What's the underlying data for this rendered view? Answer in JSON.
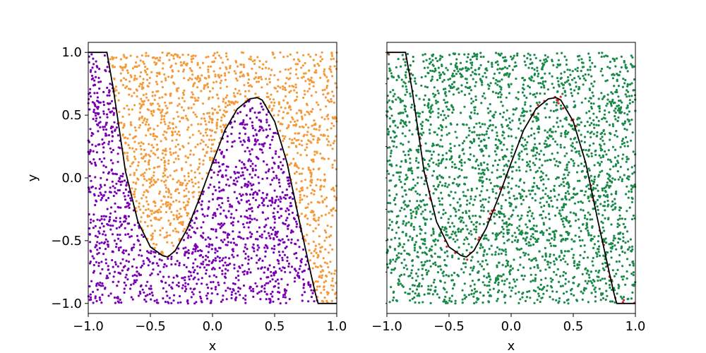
{
  "chart_data": [
    {
      "type": "scatter",
      "title": "",
      "xlabel": "x",
      "ylabel": "y",
      "xlim": [
        -1.0,
        1.0
      ],
      "ylim": [
        -1.08,
        1.08
      ],
      "xticks": [
        "−1.0",
        "−0.5",
        "0.0",
        "0.5",
        "1.0"
      ],
      "xtick_values": [
        -1.0,
        -0.5,
        0.0,
        0.5,
        1.0
      ],
      "yticks": [
        "−1.0",
        "−0.5",
        "0.0",
        "0.5",
        "1.0"
      ],
      "ytick_values": [
        -1.0,
        -0.5,
        0.0,
        0.5,
        1.0
      ],
      "grid": false,
      "points_per_panel": 3000,
      "series": [
        {
          "class": "below curve",
          "color": "#7b00b4"
        },
        {
          "class": "above curve",
          "color": "#f59a3a"
        }
      ],
      "boundary_curve": {
        "color": "#000000",
        "x": [
          -1.0,
          -0.9,
          -0.85,
          -0.8,
          -0.7,
          -0.6,
          -0.5,
          -0.4,
          -0.36,
          -0.3,
          -0.2,
          -0.1,
          0.0,
          0.1,
          0.2,
          0.3,
          0.36,
          0.4,
          0.5,
          0.6,
          0.7,
          0.76,
          0.8,
          0.83,
          0.85,
          0.9,
          1.0
        ],
        "y": [
          1.0,
          1.0,
          1.0,
          0.72,
          0.05,
          -0.35,
          -0.55,
          -0.62,
          -0.63,
          -0.58,
          -0.4,
          -0.15,
          0.12,
          0.38,
          0.55,
          0.63,
          0.64,
          0.62,
          0.45,
          0.12,
          -0.35,
          -0.62,
          -0.8,
          -0.93,
          -1.0,
          -1.0,
          -1.0
        ]
      }
    },
    {
      "type": "scatter",
      "title": "",
      "xlabel": "x",
      "ylabel": "",
      "xlim": [
        -1.0,
        1.0
      ],
      "ylim": [
        -1.08,
        1.08
      ],
      "xticks": [
        "−1.0",
        "−0.5",
        "0.0",
        "0.5",
        "1.0"
      ],
      "xtick_values": [
        -1.0,
        -0.5,
        0.0,
        0.5,
        1.0
      ],
      "ytick_values": [
        -1.0,
        -0.75,
        -0.5,
        -0.25,
        0.0,
        0.25,
        0.5,
        0.75,
        1.0
      ],
      "grid": false,
      "points_per_panel": 3000,
      "misclassified_band": 0.035,
      "series": [
        {
          "class": "correct",
          "color": "#1a8a4a"
        },
        {
          "class": "misclassified",
          "color": "#d62728"
        }
      ],
      "boundary_curve": {
        "color": "#000000",
        "x": [
          -1.0,
          -0.9,
          -0.85,
          -0.8,
          -0.7,
          -0.6,
          -0.5,
          -0.4,
          -0.36,
          -0.3,
          -0.2,
          -0.1,
          0.0,
          0.1,
          0.2,
          0.3,
          0.36,
          0.4,
          0.5,
          0.6,
          0.7,
          0.76,
          0.8,
          0.83,
          0.85,
          0.9,
          1.0
        ],
        "y": [
          1.0,
          1.0,
          1.0,
          0.72,
          0.05,
          -0.35,
          -0.55,
          -0.62,
          -0.63,
          -0.58,
          -0.4,
          -0.15,
          0.12,
          0.38,
          0.55,
          0.63,
          0.64,
          0.62,
          0.45,
          0.12,
          -0.35,
          -0.62,
          -0.8,
          -0.93,
          -1.0,
          -1.0,
          -1.0
        ]
      }
    }
  ]
}
